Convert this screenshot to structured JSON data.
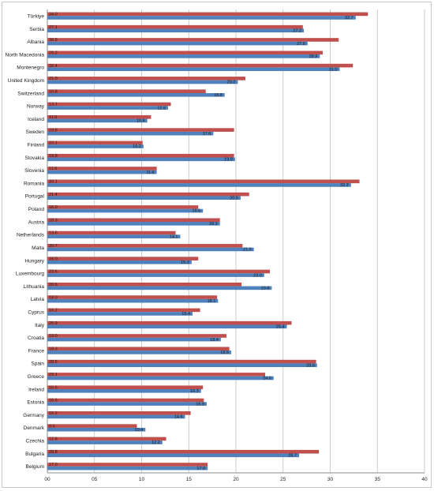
{
  "chart_data": {
    "type": "bar",
    "orientation": "horizontal",
    "title": "",
    "xlabel": "",
    "ylabel": "",
    "xlim": [
      0,
      40
    ],
    "x_ticks": [
      "00",
      "05",
      "10",
      "15",
      "20",
      "25",
      "30",
      "35",
      "40"
    ],
    "grid": "vertical",
    "legend": "none",
    "categories": [
      "Türkiye",
      "Serbia",
      "Albania",
      "North Macedonia",
      "Montenegro",
      "United Kingdom",
      "Switzerland",
      "Norway",
      "Iceland",
      "Sweden",
      "Finland",
      "Slovakia",
      "Slovenia",
      "Romania",
      "Portugal",
      "Poland",
      "Austria",
      "Netherlands",
      "Malta",
      "Hungary",
      "Luxembourg",
      "Lithuania",
      "Latvia",
      "Cyprus",
      "Italy",
      "Croatia",
      "France",
      "Spain",
      "Greece",
      "Ireland",
      "Estonia",
      "Germany",
      "Denmark",
      "Czechia",
      "Bulgaria",
      "Belgium"
    ],
    "series": [
      {
        "color": "#c0504d",
        "values": [
          34.0,
          27.1,
          30.9,
          29.2,
          32.4,
          21.0,
          16.8,
          13.1,
          11.0,
          19.8,
          10.1,
          19.8,
          11.6,
          33.1,
          21.4,
          16.0,
          18.3,
          13.6,
          20.7,
          16.0,
          23.6,
          20.6,
          18.0,
          16.2,
          25.9,
          19.0,
          19.3,
          28.5,
          23.1,
          16.5,
          16.6,
          15.2,
          9.5,
          12.6,
          28.8,
          17.0
        ],
        "labels": [
          "34.0",
          "27.1",
          "30.9",
          "29.2",
          "32.4",
          "21.0",
          "16.8",
          "13.1",
          "11.0",
          "19.8",
          "10.1",
          "19.8",
          "11.6",
          "33.1",
          "21.4",
          "16.0",
          "18.3",
          "13.6",
          "20.7",
          "16.0",
          "23.6",
          "20.6",
          "18.0",
          "16.2",
          "25.9",
          "19.0",
          "19.3",
          "28.5",
          "23.1",
          "16.5",
          "16.6",
          "15.2",
          "9.5",
          "12.6",
          "28.8",
          "17.0"
        ]
      },
      {
        "color": "#4f81bd",
        "values": [
          32.7,
          27.2,
          27.6,
          28.9,
          31.0,
          20.2,
          18.8,
          12.8,
          10.6,
          17.6,
          10.2,
          19.9,
          11.6,
          32.2,
          20.5,
          16.5,
          18.3,
          14.1,
          21.9,
          15.3,
          23.0,
          23.8,
          18.1,
          15.4,
          25.4,
          18.4,
          19.5,
          28.6,
          24.0,
          16.3,
          16.9,
          14.6,
          10.4,
          12.2,
          26.7,
          17.0
        ],
        "labels": [
          "32.7",
          "27.2",
          "27.6",
          "28.9",
          "31.0",
          "20.2",
          "18.8",
          "12.8",
          "10.6",
          "17.6",
          "10.2",
          "19.9",
          "11.6",
          "32.2",
          "20.5",
          "16.5",
          "18.3",
          "14.1",
          "21.9",
          "15.3",
          "23.0",
          "23.8",
          "18.1",
          "15.4",
          "25.4",
          "18.4",
          "19.5",
          "28.6",
          "24.0",
          "16.3",
          "16.9",
          "14.6",
          "10.4",
          "12.2",
          "26.7",
          "17.0"
        ]
      }
    ]
  }
}
